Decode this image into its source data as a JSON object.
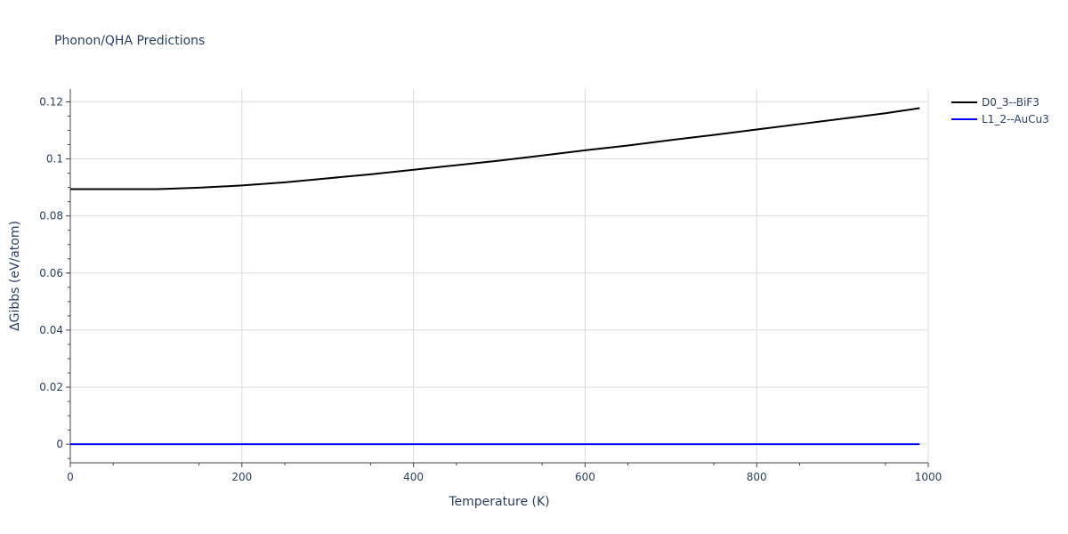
{
  "chart_data": {
    "type": "line",
    "title": "Phonon/QHA Predictions",
    "xlabel": "Temperature (K)",
    "ylabel": "ΔGibbs (eV/atom)",
    "xlim": [
      0,
      1000
    ],
    "ylim": [
      -0.0065,
      0.1245
    ],
    "x_ticks": [
      0,
      200,
      400,
      600,
      800,
      1000
    ],
    "x_tick_labels": [
      "0",
      "200",
      "400",
      "600",
      "800",
      "1000"
    ],
    "y_ticks": [
      0,
      0.02,
      0.04,
      0.06,
      0.08,
      0.1,
      0.12
    ],
    "y_tick_labels": [
      "0",
      "0.02",
      "0.04",
      "0.06",
      "0.08",
      "0.1",
      "0.12"
    ],
    "grid": true,
    "legend_position": "top-right",
    "series": [
      {
        "name": "D0_3--BiF3",
        "color": "#000000",
        "x": [
          0,
          50,
          100,
          110,
          150,
          200,
          250,
          300,
          350,
          400,
          450,
          500,
          550,
          600,
          650,
          700,
          750,
          800,
          850,
          900,
          950,
          990
        ],
        "y": [
          0.0894,
          0.0894,
          0.0894,
          0.0895,
          0.0899,
          0.0907,
          0.0918,
          0.0932,
          0.0946,
          0.0962,
          0.0978,
          0.0994,
          0.1012,
          0.103,
          0.1047,
          0.1066,
          0.1084,
          0.1103,
          0.1122,
          0.1141,
          0.116,
          0.1178
        ]
      },
      {
        "name": "L1_2--AuCu3",
        "color": "#0000ff",
        "x": [
          0,
          990
        ],
        "y": [
          0,
          0
        ]
      }
    ]
  }
}
